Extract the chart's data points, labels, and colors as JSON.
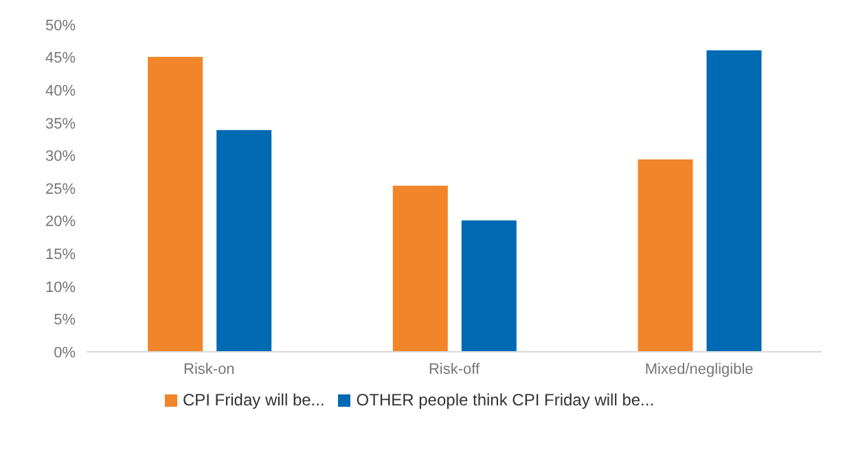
{
  "chart_data": {
    "type": "bar",
    "categories": [
      "Risk-on",
      "Risk-off",
      "Mixed/negligible"
    ],
    "series": [
      {
        "name": "CPI Friday will be...",
        "color": "#f28529",
        "values": [
          45.1,
          25.4,
          29.4
        ]
      },
      {
        "name": "OTHER people think CPI Friday will be...",
        "color": "#0069b4",
        "values": [
          33.9,
          20.1,
          46.1
        ]
      }
    ],
    "ylim": [
      0,
      50
    ],
    "yticks": [
      {
        "value": 0,
        "label": "0%"
      },
      {
        "value": 5,
        "label": "5%"
      },
      {
        "value": 10,
        "label": "10%"
      },
      {
        "value": 15,
        "label": "15%"
      },
      {
        "value": 20,
        "label": "20%"
      },
      {
        "value": 25,
        "label": "25%"
      },
      {
        "value": 30,
        "label": "30%"
      },
      {
        "value": 35,
        "label": "35%"
      },
      {
        "value": 40,
        "label": "40%"
      },
      {
        "value": 45,
        "label": "45%"
      },
      {
        "value": 50,
        "label": "50%"
      }
    ],
    "grid": false,
    "legend": "bottom"
  }
}
